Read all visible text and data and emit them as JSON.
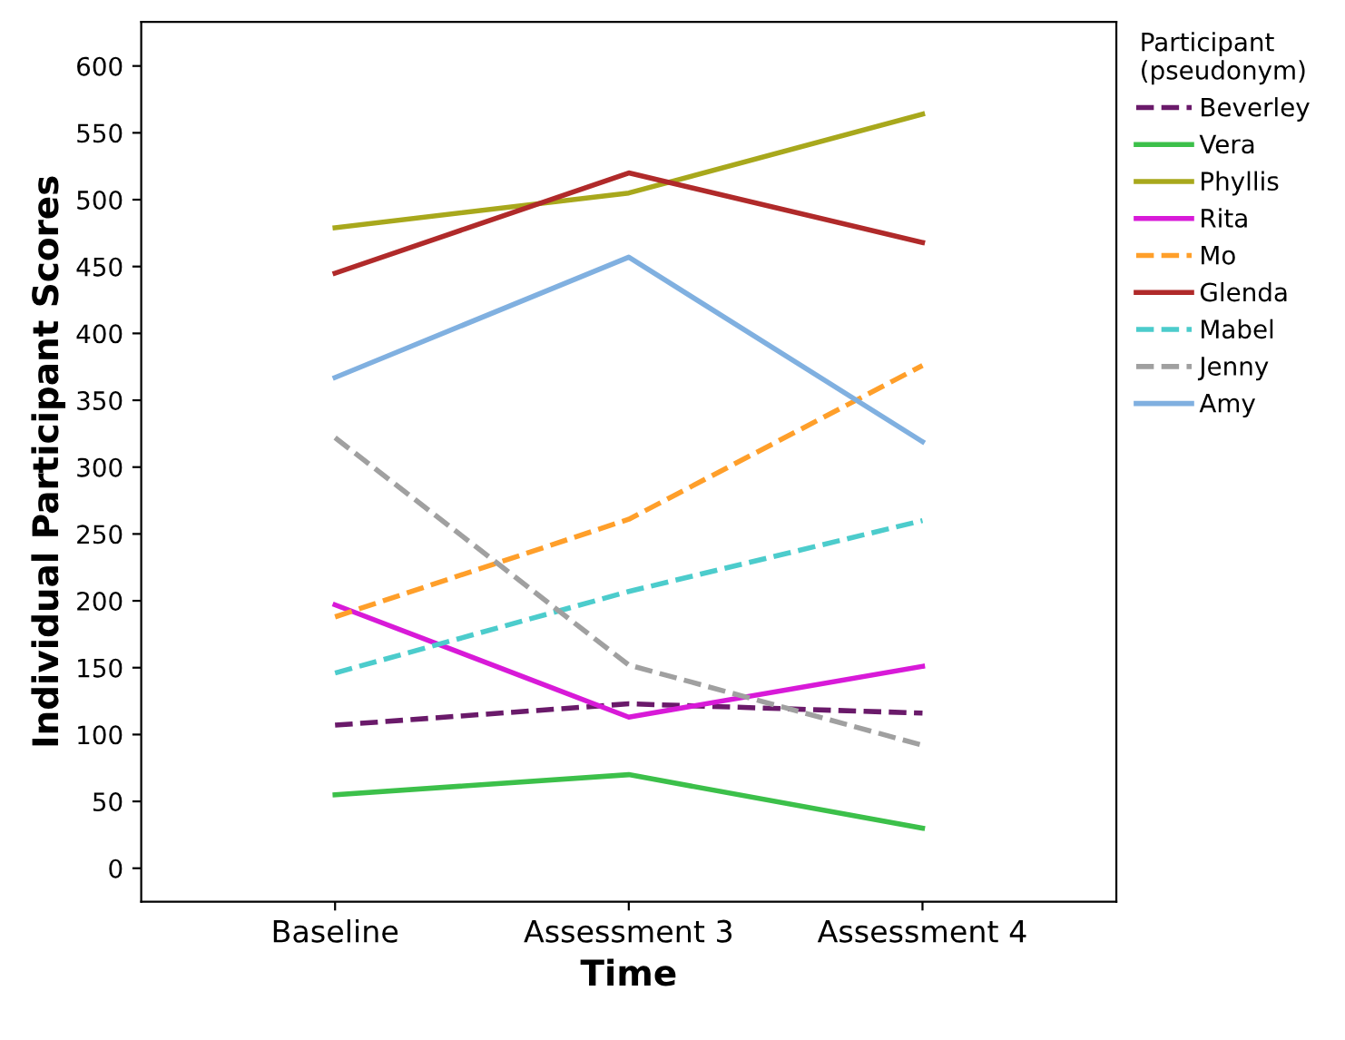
{
  "chart_data": {
    "type": "line",
    "xlabel": "Time",
    "ylabel": "Individual Participant Scores",
    "legend_title": "Participant\n(pseudonym)",
    "categories": [
      "Baseline",
      "Assessment 3",
      "Assessment 4"
    ],
    "series": [
      {
        "name": "Beverley",
        "color": "#6a1a6a",
        "line_style": "dashed",
        "values": [
          107,
          123,
          116
        ]
      },
      {
        "name": "Vera",
        "color": "#3cc04a",
        "line_style": "solid",
        "values": [
          55,
          70,
          30
        ]
      },
      {
        "name": "Phyllis",
        "color": "#a8a81c",
        "line_style": "solid",
        "values": [
          479,
          505,
          564
        ]
      },
      {
        "name": "Rita",
        "color": "#d81ad8",
        "line_style": "solid",
        "values": [
          197,
          113,
          151
        ]
      },
      {
        "name": "Mo",
        "color": "#ff9f2a",
        "line_style": "dashed",
        "values": [
          188,
          261,
          376
        ]
      },
      {
        "name": "Glenda",
        "color": "#b02a2a",
        "line_style": "solid",
        "values": [
          445,
          520,
          468
        ]
      },
      {
        "name": "Mabel",
        "color": "#4ccccc",
        "line_style": "dashed",
        "values": [
          146,
          207,
          260
        ]
      },
      {
        "name": "Jenny",
        "color": "#a0a0a0",
        "line_style": "dashed",
        "values": [
          322,
          152,
          92
        ]
      },
      {
        "name": "Amy",
        "color": "#80b0e0",
        "line_style": "solid",
        "values": [
          367,
          457,
          319
        ]
      }
    ],
    "ylim": [
      -25,
      633
    ],
    "yticks": [
      0,
      50,
      100,
      150,
      200,
      250,
      300,
      350,
      400,
      450,
      500,
      550,
      600
    ],
    "grid": false,
    "legend": "right",
    "marker": "none"
  }
}
